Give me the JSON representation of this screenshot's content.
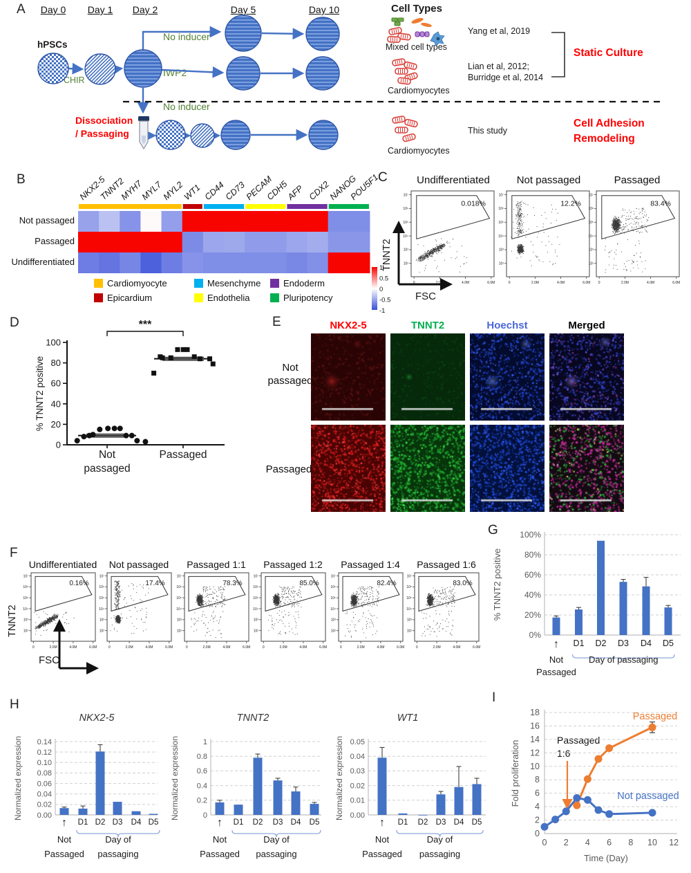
{
  "panel_labels": {
    "A": "A",
    "B": "B",
    "C": "C",
    "D": "D",
    "E": "E",
    "F": "F",
    "G": "G",
    "H": "H",
    "I": "I"
  },
  "panelA": {
    "days": [
      "Day 0",
      "Day 1",
      "Day 2",
      "Day 5",
      "Day 10"
    ],
    "hpscs": "hPSCs",
    "chir": "CHIR",
    "no_inducer_top": "No inducer",
    "iwp2": "IWP2",
    "no_inducer_bottom": "No inducer",
    "dissociation_line1": "Dissociation",
    "dissociation_line2": "/ Passaging",
    "cell_types_title": "Cell Types",
    "mixed_cell_types": "Mixed cell types",
    "cardiomyocytes_top": "Cardiomyocytes",
    "cardiomyocytes_bottom": "Cardiomyocytes",
    "citation_yang": "Yang et al, 2019",
    "citation_lian": "Lian et al, 2012;",
    "citation_burridge": "Burridge et al, 2014",
    "this_study": "This study",
    "static_culture": "Static Culture",
    "cell_adhesion_1": "Cell Adhesion",
    "cell_adhesion_2": "Remodeling"
  },
  "panelB_legend": [
    {
      "label": "Cardiomyocyte",
      "color": "#FFC000"
    },
    {
      "label": "Epicardium",
      "color": "#C00000"
    },
    {
      "label": "Mesenchyme",
      "color": "#00B0F0"
    },
    {
      "label": "Endothelia",
      "color": "#FFFF00"
    },
    {
      "label": "Endoderm",
      "color": "#7030A0"
    },
    {
      "label": "Pluripotency",
      "color": "#00B050"
    }
  ],
  "panelE": {
    "channels": [
      "NKX2-5",
      "TNNT2",
      "Hoechst",
      "Merged"
    ],
    "channel_colors": [
      "#FF0000",
      "#00B050",
      "#4a66d8",
      "#000000"
    ],
    "row1_line1": "Not",
    "row1_line2": "passaged",
    "row2": "Passaged"
  },
  "chart_data": [
    {
      "id": "B",
      "type": "heatmap",
      "genes": [
        "NKX2-5",
        "TNNT2",
        "MYH7",
        "MYL7",
        "MYL2",
        "WT1",
        "CD44",
        "CD73",
        "PECAM",
        "CDH5",
        "AFP",
        "CDX2",
        "NANOG",
        "POU5F1"
      ],
      "rows": [
        "Not passaged",
        "Passaged",
        "Undifferentiated"
      ],
      "values": [
        [
          -0.28,
          -0.12,
          -0.38,
          0.02,
          -0.3,
          1,
          1,
          1,
          1,
          1,
          1,
          1,
          -0.42,
          -0.42
        ],
        [
          1,
          1,
          1,
          1,
          1,
          -0.44,
          -0.26,
          -0.24,
          -0.32,
          -0.32,
          -0.26,
          -0.22,
          -0.35,
          -0.35
        ],
        [
          -0.55,
          -0.62,
          -0.48,
          -0.82,
          -0.55,
          -0.38,
          -0.42,
          -0.42,
          -0.42,
          -0.42,
          -0.46,
          -0.4,
          1,
          1
        ]
      ],
      "category_spans": [
        [
          0,
          5,
          "#FFC000"
        ],
        [
          5,
          6,
          "#C00000"
        ],
        [
          6,
          8,
          "#00B0F0"
        ],
        [
          8,
          10,
          "#FFFF00"
        ],
        [
          10,
          12,
          "#7030A0"
        ],
        [
          12,
          14,
          "#00B050"
        ]
      ],
      "colorbar_ticks": [
        "1",
        "0.5",
        "0",
        "-0.5",
        "-1"
      ]
    },
    {
      "id": "C",
      "type": "flow",
      "ylabel": "TNNT2",
      "xlabel": "FSC",
      "xticks": [
        "0",
        "2.0M",
        "4.0M",
        "6.0M"
      ],
      "yticks": [
        "10⁷",
        "10⁶",
        "10⁵",
        "10⁴",
        "10³",
        "10²"
      ],
      "plots": [
        {
          "title": "Undifferentiated",
          "pct": "0.018%",
          "cloud": "undiff"
        },
        {
          "title": "Not passaged",
          "pct": "12.2%",
          "cloud": "mid"
        },
        {
          "title": "Passaged",
          "pct": "83.4%",
          "cloud": "high"
        }
      ]
    },
    {
      "id": "D",
      "type": "scatter",
      "ylabel": "% TNNT2 positive",
      "ylim": [
        0,
        100
      ],
      "yticks": [
        0,
        20,
        40,
        60,
        80,
        100
      ],
      "significance": "***",
      "groups": [
        {
          "label_lines": [
            "Not",
            "passaged"
          ],
          "marker": "circle",
          "mean": 9,
          "sem": 1.5,
          "values": [
            16,
            16,
            15,
            16,
            10,
            9,
            9,
            9,
            8,
            4,
            4,
            3
          ]
        },
        {
          "label_lines": [
            "Passaged"
          ],
          "marker": "square",
          "mean": 84,
          "sem": 1.5,
          "values": [
            93,
            93,
            93,
            86,
            85,
            84,
            85,
            84,
            86,
            79,
            70
          ]
        }
      ]
    },
    {
      "id": "F",
      "type": "flow",
      "ylabel": "TNNT2",
      "xlabel": "FSC",
      "xticks": [
        "0",
        "2.0M",
        "4.0M",
        "6.0M"
      ],
      "yticks": [
        "10⁷",
        "10⁶",
        "10⁵",
        "10⁴",
        "10³",
        "10²"
      ],
      "plots": [
        {
          "title": "Undifferentiated",
          "pct": "0.16%",
          "cloud": "undiff"
        },
        {
          "title": "Not passaged",
          "pct": "17.4%",
          "cloud": "mid"
        },
        {
          "title": "Passaged 1:1",
          "pct": "78.3%",
          "cloud": "high"
        },
        {
          "title": "Passaged 1:2",
          "pct": "85.0%",
          "cloud": "high"
        },
        {
          "title": "Passaged 1:4",
          "pct": "82.4%",
          "cloud": "high"
        },
        {
          "title": "Passaged 1:6",
          "pct": "83.0%",
          "cloud": "high"
        }
      ]
    },
    {
      "id": "G",
      "type": "bar",
      "ylabel": "% TNNT2 positive",
      "categories": [
        "Not Passaged",
        "D1",
        "D2",
        "D3",
        "D4",
        "D5"
      ],
      "values": [
        17.5,
        25.5,
        94,
        53,
        48.5,
        27.5
      ],
      "errors": [
        1.5,
        2,
        0,
        2.5,
        9,
        2
      ],
      "ylim": [
        0,
        100
      ],
      "ytick_labels": [
        "0%",
        "20%",
        "40%",
        "60%",
        "80%",
        "100%"
      ],
      "xnote": "Day of passaging",
      "arrow": "↑"
    },
    {
      "id": "H1",
      "type": "bar",
      "title": "NKX2-5",
      "ylabel": "Normalized expression",
      "categories": [
        "Not Passaged",
        "D1",
        "D2",
        "D3",
        "D4",
        "D5"
      ],
      "values": [
        0.013,
        0.012,
        0.121,
        0.025,
        0.007,
        0.002
      ],
      "errors": [
        0.002,
        0.005,
        0.013,
        0,
        0,
        0
      ],
      "ylim": [
        0,
        0.14
      ],
      "ytick_labels": [
        "0.00",
        "0.02",
        "0.04",
        "0.06",
        "0.08",
        "0.10",
        "0.12",
        "0.14"
      ],
      "xnote": "Day of passaging",
      "arrow": "↑"
    },
    {
      "id": "H2",
      "type": "bar",
      "title": "TNNT2",
      "ylabel": "Normalized expression",
      "categories": [
        "Not Passaged",
        "D1",
        "D2",
        "D3",
        "D4",
        "D5"
      ],
      "values": [
        0.17,
        0.14,
        0.78,
        0.47,
        0.32,
        0.15
      ],
      "errors": [
        0.03,
        0,
        0.05,
        0.03,
        0.06,
        0.02
      ],
      "ylim": [
        0,
        1
      ],
      "ytick_labels": [
        "0",
        "0.2",
        "0.4",
        "0.6",
        "0.8",
        "1"
      ],
      "xnote": "Day of passaging",
      "arrow": "↑"
    },
    {
      "id": "H3",
      "type": "bar",
      "title": "WT1",
      "ylabel": "Normalized expression",
      "categories": [
        "Not Passaged",
        "D1",
        "D2",
        "D3",
        "D4",
        "D5"
      ],
      "values": [
        0.039,
        0.001,
        0,
        0.014,
        0.019,
        0.021
      ],
      "errors": [
        0.007,
        0,
        0,
        0.002,
        0.014,
        0.004
      ],
      "ylim": [
        0,
        0.05
      ],
      "ytick_labels": [
        "0.00",
        "0.01",
        "0.02",
        "0.03",
        "0.04",
        "0.05"
      ],
      "xnote": "Day of passaging",
      "arrow": "↑"
    },
    {
      "id": "I",
      "type": "line",
      "xlabel": "Time (Day)",
      "ylabel": "Fold proliferation",
      "xlim": [
        0,
        12
      ],
      "ylim": [
        0,
        18
      ],
      "xticks": [
        0,
        2,
        4,
        6,
        8,
        10,
        12
      ],
      "yticks": [
        0,
        2,
        4,
        6,
        8,
        10,
        12,
        14,
        16,
        18
      ],
      "series": [
        {
          "name": "Passaged",
          "color": "#ED7D31",
          "x": [
            3,
            4,
            5,
            6,
            10
          ],
          "y": [
            4.2,
            8.1,
            11.1,
            12.7,
            15.8
          ],
          "error_last": 0.8
        },
        {
          "name": "Not passaged",
          "color": "#4472C4",
          "x": [
            0,
            1,
            2,
            3,
            4,
            5,
            6,
            10
          ],
          "y": [
            1,
            2.1,
            3.3,
            5.3,
            5.0,
            3.5,
            2.9,
            3.1
          ]
        }
      ],
      "annotation_line1": "Passaged",
      "annotation_line2": "1:6"
    }
  ]
}
